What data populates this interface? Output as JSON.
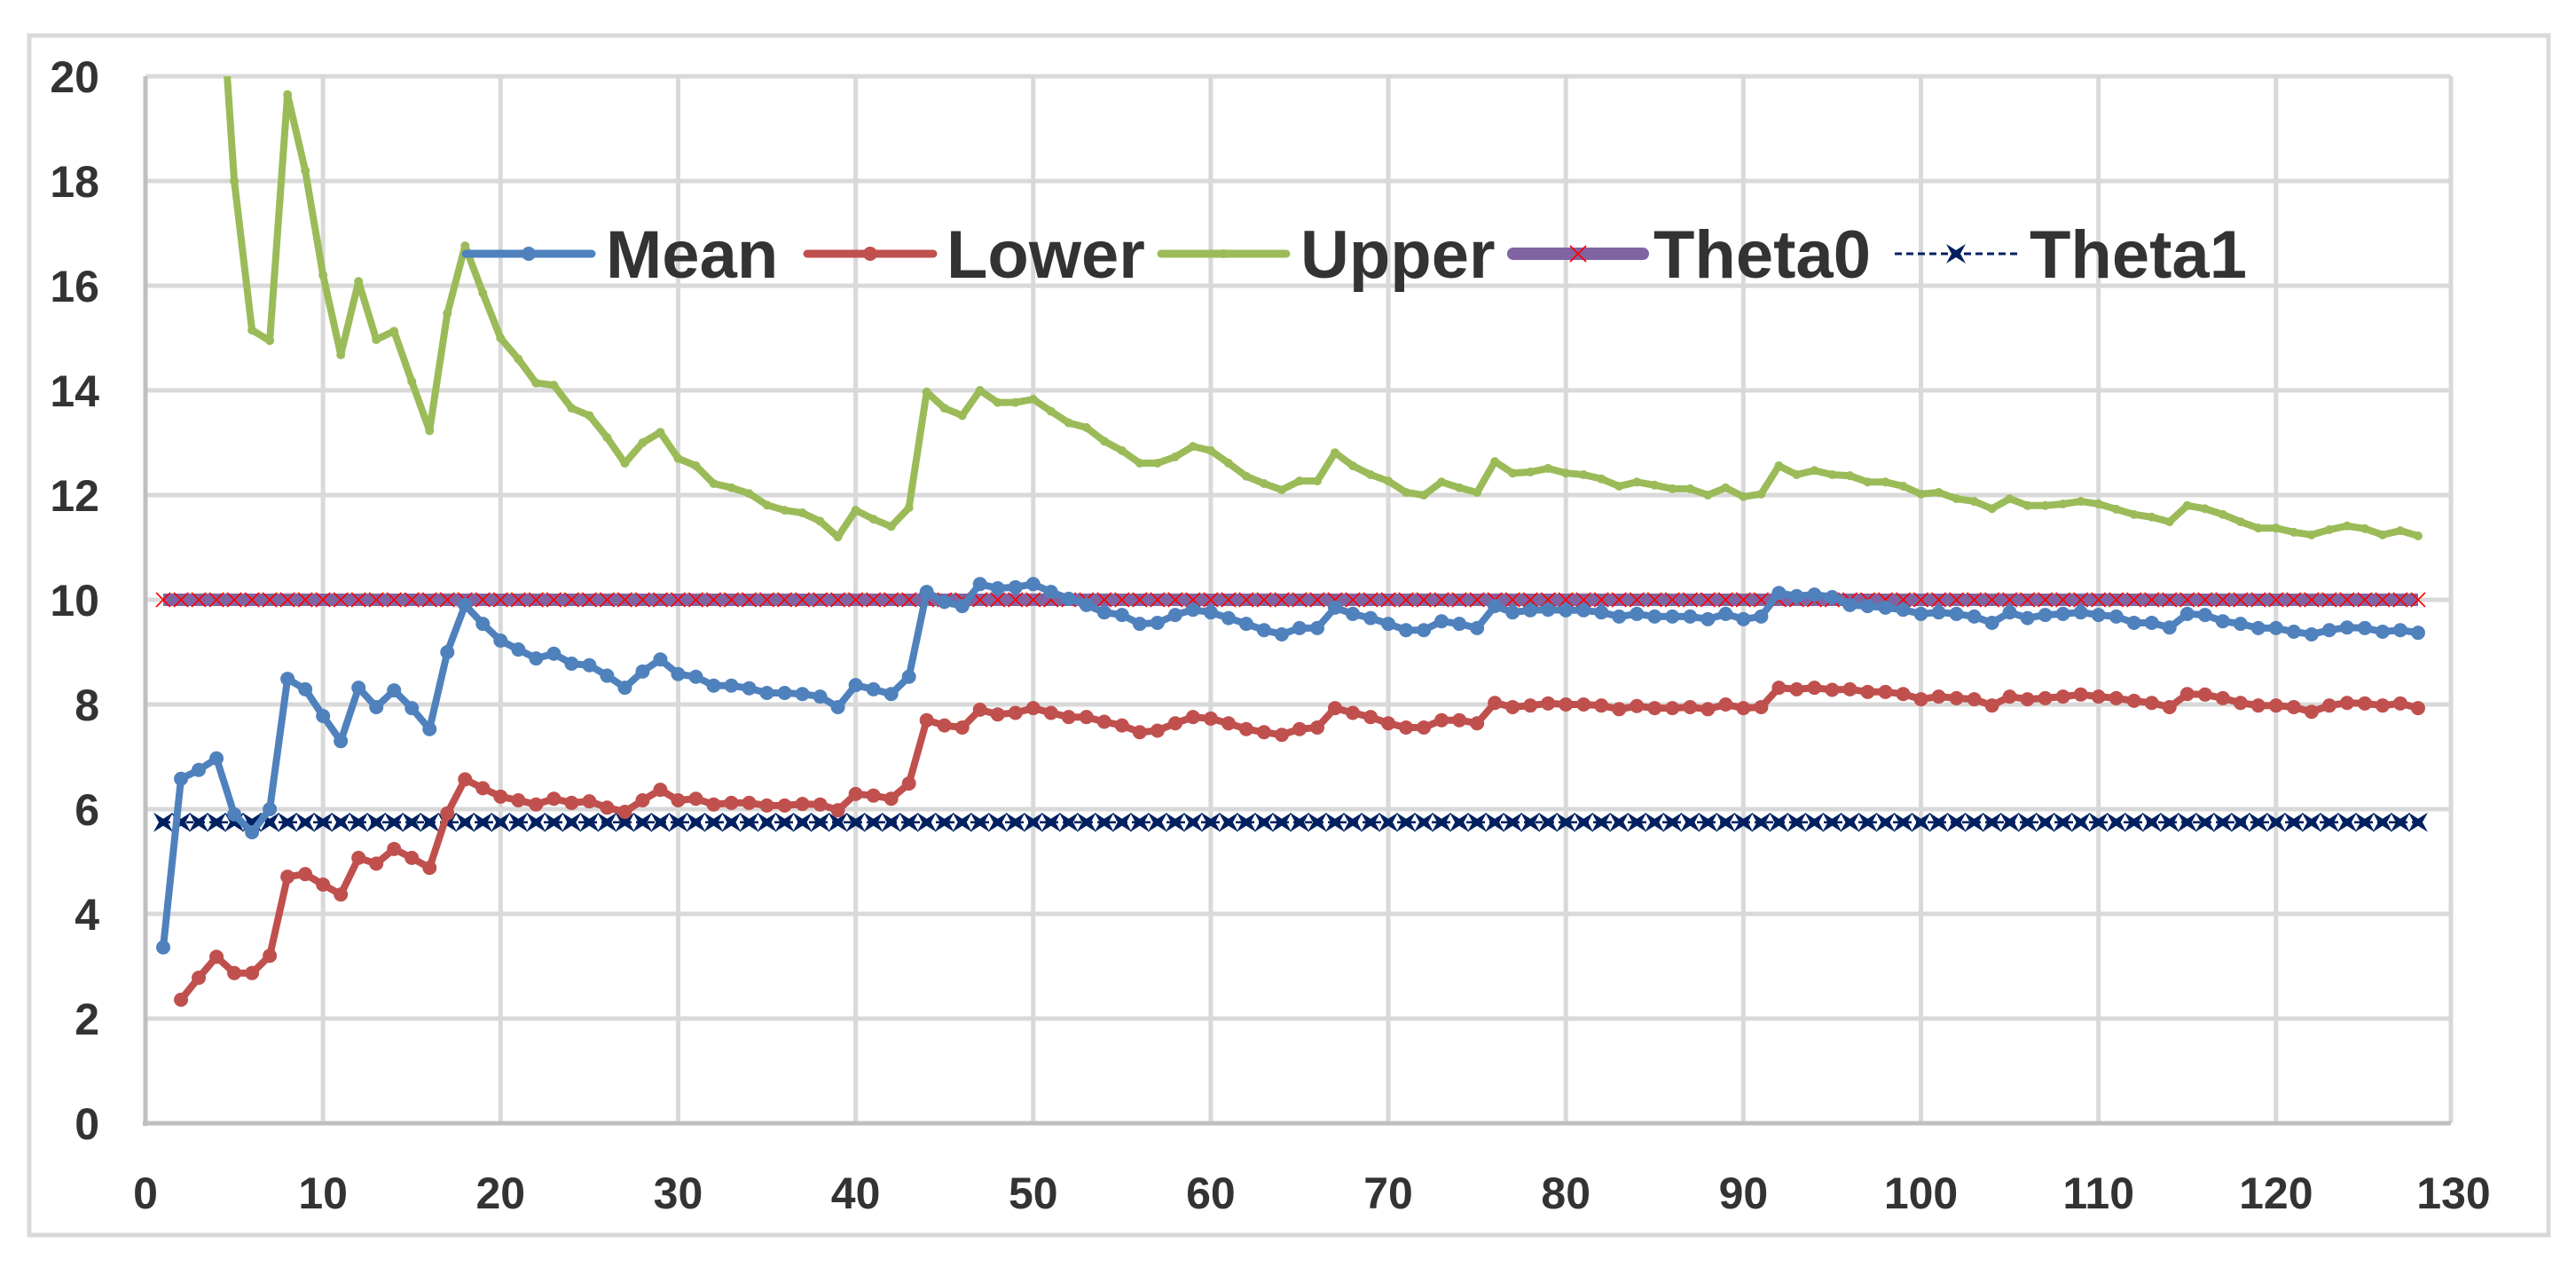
{
  "chart_data": {
    "type": "line",
    "title": "",
    "xlabel": "",
    "ylabel": "",
    "xlim": [
      0,
      130
    ],
    "ylim": [
      0,
      20
    ],
    "x_ticks": [
      0,
      10,
      20,
      30,
      40,
      50,
      60,
      70,
      80,
      90,
      100,
      110,
      120,
      130
    ],
    "y_ticks": [
      0,
      2,
      4,
      6,
      8,
      10,
      12,
      14,
      16,
      18,
      20
    ],
    "grid": true,
    "legend_position": "inside-top",
    "legend": [
      "Mean",
      "Lower",
      "Upper",
      "Theta0",
      "Theta1"
    ],
    "x_start": 1,
    "series": [
      {
        "name": "Mean",
        "color": "#4F81BD",
        "marker": "circle",
        "x_start": 1,
        "values": [
          3.36,
          6.58,
          6.75,
          6.97,
          5.9,
          5.56,
          6.0,
          8.49,
          8.29,
          7.78,
          7.3,
          8.32,
          7.95,
          8.27,
          7.93,
          7.53,
          9.0,
          9.9,
          9.54,
          9.22,
          9.05,
          8.88,
          8.97,
          8.78,
          8.75,
          8.55,
          8.32,
          8.63,
          8.86,
          8.58,
          8.53,
          8.36,
          8.36,
          8.31,
          8.22,
          8.22,
          8.2,
          8.15,
          7.95,
          8.37,
          8.29,
          8.2,
          8.53,
          10.15,
          9.96,
          9.88,
          10.3,
          10.22,
          10.24,
          10.3,
          10.15,
          10.02,
          9.9,
          9.76,
          9.71,
          9.54,
          9.56,
          9.71,
          9.81,
          9.76,
          9.65,
          9.54,
          9.42,
          9.34,
          9.46,
          9.46,
          9.85,
          9.73,
          9.65,
          9.54,
          9.42,
          9.42,
          9.59,
          9.54,
          9.46,
          9.88,
          9.76,
          9.8,
          9.81,
          9.8,
          9.8,
          9.76,
          9.68,
          9.73,
          9.68,
          9.68,
          9.68,
          9.63,
          9.73,
          9.63,
          9.68,
          10.13,
          10.07,
          10.1,
          10.05,
          9.9,
          9.88,
          9.85,
          9.81,
          9.73,
          9.76,
          9.73,
          9.68,
          9.56,
          9.76,
          9.65,
          9.71,
          9.73,
          9.76,
          9.71,
          9.68,
          9.56,
          9.56,
          9.47,
          9.73,
          9.71,
          9.59,
          9.54,
          9.46,
          9.46,
          9.39,
          9.34,
          9.42,
          9.47,
          9.46,
          9.39,
          9.42,
          9.37
        ]
      },
      {
        "name": "Lower",
        "color": "#C0504D",
        "marker": "circle",
        "x_start": 2,
        "values": [
          2.36,
          2.78,
          3.18,
          2.87,
          2.87,
          3.2,
          4.71,
          4.76,
          4.56,
          4.37,
          5.07,
          4.96,
          5.24,
          5.07,
          4.88,
          5.92,
          6.57,
          6.4,
          6.24,
          6.17,
          6.09,
          6.2,
          6.12,
          6.15,
          6.03,
          5.95,
          6.17,
          6.37,
          6.17,
          6.2,
          6.09,
          6.12,
          6.12,
          6.07,
          6.07,
          6.1,
          6.09,
          5.98,
          6.29,
          6.26,
          6.2,
          6.49,
          7.7,
          7.6,
          7.56,
          7.9,
          7.81,
          7.84,
          7.93,
          7.84,
          7.76,
          7.76,
          7.67,
          7.6,
          7.47,
          7.5,
          7.64,
          7.76,
          7.73,
          7.64,
          7.53,
          7.47,
          7.42,
          7.53,
          7.56,
          7.93,
          7.84,
          7.76,
          7.64,
          7.56,
          7.56,
          7.7,
          7.7,
          7.64,
          8.03,
          7.95,
          7.98,
          8.02,
          8.0,
          8.0,
          7.98,
          7.91,
          7.97,
          7.93,
          7.93,
          7.95,
          7.91,
          8.0,
          7.93,
          7.95,
          8.32,
          8.29,
          8.32,
          8.28,
          8.29,
          8.24,
          8.24,
          8.2,
          8.1,
          8.15,
          8.12,
          8.1,
          7.98,
          8.15,
          8.1,
          8.12,
          8.15,
          8.19,
          8.15,
          8.12,
          8.07,
          8.03,
          7.95,
          8.2,
          8.19,
          8.12,
          8.03,
          7.98,
          7.98,
          7.95,
          7.86,
          7.98,
          8.03,
          8.02,
          7.98,
          8.02,
          7.93
        ]
      },
      {
        "name": "Upper",
        "color": "#9BBB59",
        "marker": "small-dot",
        "x_start": 4,
        "note": "values above 20 are clipped by the axis",
        "values": [
          23.0,
          18.0,
          15.15,
          14.95,
          19.65,
          18.2,
          16.2,
          14.68,
          16.08,
          14.97,
          15.13,
          14.17,
          13.23,
          15.47,
          16.76,
          15.86,
          15.0,
          14.6,
          14.14,
          14.1,
          13.66,
          13.52,
          13.1,
          12.61,
          13.0,
          13.2,
          12.7,
          12.56,
          12.22,
          12.14,
          12.03,
          11.81,
          11.71,
          11.66,
          11.5,
          11.2,
          11.71,
          11.54,
          11.4,
          11.76,
          13.97,
          13.66,
          13.52,
          14.0,
          13.77,
          13.77,
          13.83,
          13.6,
          13.38,
          13.29,
          13.03,
          12.85,
          12.61,
          12.61,
          12.73,
          12.93,
          12.85,
          12.61,
          12.36,
          12.22,
          12.1,
          12.27,
          12.27,
          12.81,
          12.56,
          12.39,
          12.27,
          12.05,
          12.0,
          12.25,
          12.14,
          12.05,
          12.64,
          12.42,
          12.44,
          12.51,
          12.42,
          12.39,
          12.31,
          12.17,
          12.25,
          12.19,
          12.12,
          12.12,
          12.0,
          12.14,
          11.97,
          12.02,
          12.56,
          12.39,
          12.47,
          12.39,
          12.37,
          12.25,
          12.25,
          12.17,
          12.02,
          12.05,
          11.93,
          11.88,
          11.74,
          11.93,
          11.8,
          11.8,
          11.83,
          11.88,
          11.83,
          11.73,
          11.63,
          11.58,
          11.49,
          11.8,
          11.74,
          11.63,
          11.49,
          11.37,
          11.37,
          11.29,
          11.24,
          11.34,
          11.41,
          11.36,
          11.24,
          11.32,
          11.22
        ]
      },
      {
        "name": "Theta0",
        "color": "#8064A2",
        "marker": "x",
        "marker_color": "#FF0000",
        "x_start": 1,
        "x_end": 128,
        "constant": 10.0
      },
      {
        "name": "Theta1",
        "color": "#002060",
        "marker": "star-x",
        "line_style": "dashed",
        "x_start": 1,
        "x_end": 128,
        "constant": 5.75
      }
    ]
  },
  "colors": {
    "gridline": "#D9D9D9",
    "axis": "#BFBFBF",
    "border": "#D9D9D9",
    "text": "#333333",
    "background": "#FFFFFF"
  }
}
